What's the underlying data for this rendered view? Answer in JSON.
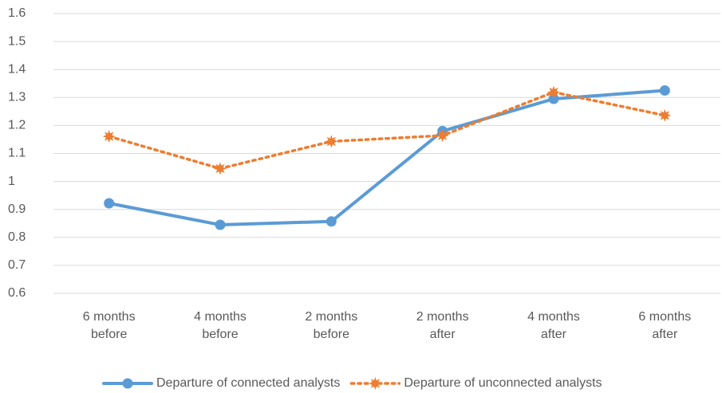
{
  "chart_data": {
    "type": "line",
    "categories": [
      "6 months before",
      "4 months before",
      "2 months before",
      "2 months after",
      "4 months after",
      "6 months after"
    ],
    "series": [
      {
        "name": "Departure of connected analysts",
        "color": "#5b9bd5",
        "style": "solid",
        "values": [
          0.922,
          0.845,
          0.857,
          1.18,
          1.295,
          1.325
        ]
      },
      {
        "name": "Departure of unconnected analysts",
        "color": "#ed7d31",
        "style": "dotted",
        "values": [
          1.161,
          1.046,
          1.143,
          1.164,
          1.319,
          1.236
        ]
      }
    ],
    "ylim": [
      0.6,
      1.6
    ],
    "yticks": [
      0.6,
      0.7,
      0.8,
      0.9,
      1,
      1.1,
      1.2,
      1.3,
      1.4,
      1.5,
      1.6
    ],
    "grid": true,
    "legend": "bottom"
  }
}
